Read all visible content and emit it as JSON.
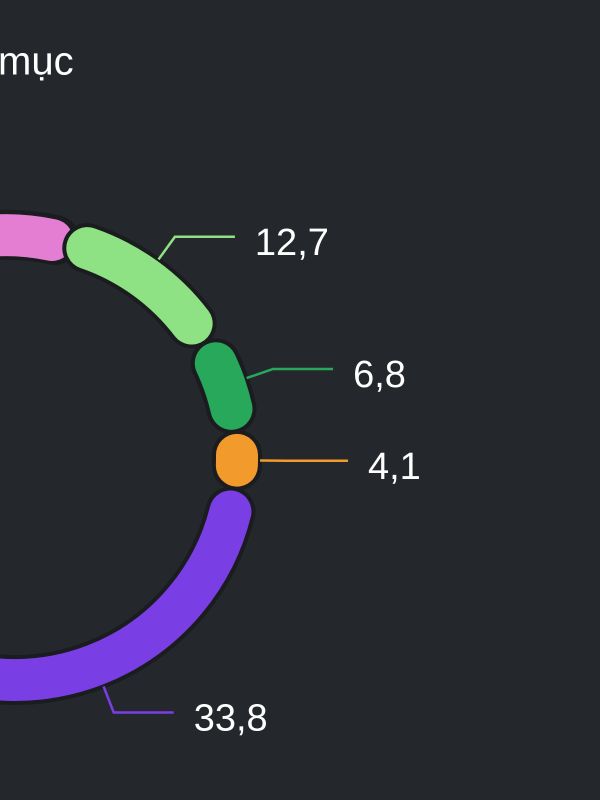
{
  "chart_data": {
    "type": "donut",
    "title": "mục",
    "series": [
      {
        "name": null,
        "color": "#8fe283",
        "values": [
          12.7
        ],
        "value_labels": [
          "12,7"
        ]
      },
      {
        "name": null,
        "color": "#27a85a",
        "values": [
          6.8
        ],
        "value_labels": [
          "6,8"
        ]
      },
      {
        "name": null,
        "color": "#f39a2c",
        "values": [
          4.1
        ],
        "value_labels": [
          "4,1"
        ]
      },
      {
        "name": null,
        "color": "#7a3fe4",
        "values": [
          33.8
        ],
        "value_labels": [
          "33,8"
        ]
      }
    ]
  }
}
